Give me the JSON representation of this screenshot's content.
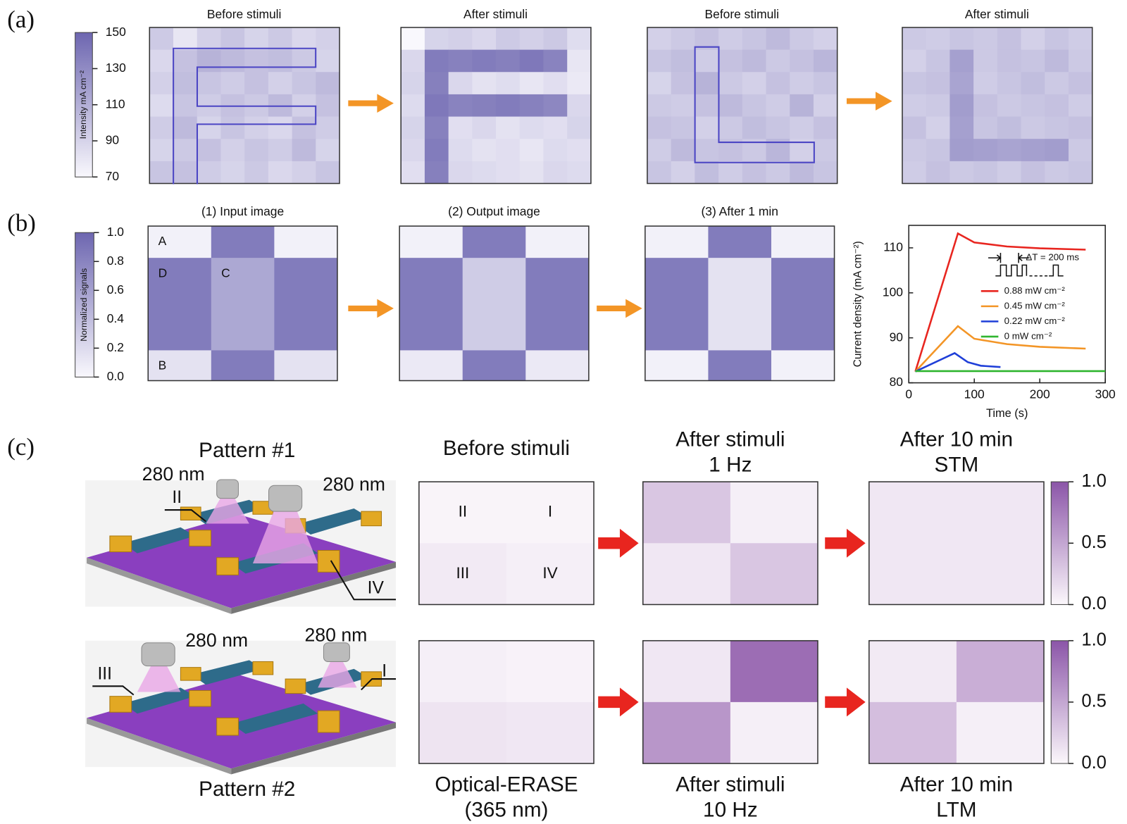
{
  "panel_labels": [
    "(a)",
    "(b)",
    "(c)"
  ],
  "panel_a": {
    "colorbar": {
      "label": "Intensity mA cm⁻²",
      "lim": [
        70,
        150
      ],
      "ticks": [
        70,
        90,
        110,
        130,
        150
      ],
      "colormap": [
        "#f9f8fd",
        "#6d66b0"
      ]
    },
    "maps": [
      {
        "title": "Before stimuli",
        "values": [
          [
            95,
            80,
            92,
            98,
            90,
            96,
            88,
            92
          ],
          [
            88,
            100,
            108,
            104,
            100,
            102,
            96,
            90
          ],
          [
            92,
            102,
            98,
            94,
            100,
            92,
            98,
            104
          ],
          [
            86,
            98,
            94,
            100,
            96,
            104,
            92,
            100
          ],
          [
            94,
            104,
            90,
            98,
            92,
            88,
            100,
            94
          ],
          [
            90,
            96,
            100,
            92,
            98,
            94,
            104,
            90
          ],
          [
            98,
            100,
            94,
            90,
            96,
            88,
            92,
            98
          ]
        ]
      },
      {
        "title": "After stimuli",
        "values": [
          [
            70,
            90,
            92,
            88,
            95,
            92,
            96,
            85
          ],
          [
            88,
            138,
            135,
            138,
            136,
            140,
            134,
            80
          ],
          [
            90,
            136,
            88,
            82,
            85,
            80,
            84,
            78
          ],
          [
            86,
            140,
            134,
            136,
            138,
            135,
            132,
            88
          ],
          [
            90,
            135,
            84,
            88,
            82,
            86,
            84,
            90
          ],
          [
            88,
            138,
            86,
            82,
            84,
            80,
            86,
            84
          ],
          [
            84,
            136,
            88,
            86,
            84,
            82,
            88,
            86
          ]
        ]
      },
      {
        "title": "Before stimuli",
        "values": [
          [
            92,
            96,
            100,
            94,
            98,
            104,
            96,
            92
          ],
          [
            98,
            102,
            94,
            100,
            104,
            96,
            100,
            106
          ],
          [
            90,
            100,
            108,
            96,
            92,
            100,
            94,
            98
          ],
          [
            96,
            94,
            100,
            104,
            98,
            94,
            108,
            92
          ],
          [
            100,
            98,
            92,
            96,
            102,
            98,
            94,
            100
          ],
          [
            94,
            104,
            98,
            100,
            96,
            106,
            92,
            96
          ],
          [
            98,
            92,
            102,
            94,
            100,
            96,
            104,
            98
          ]
        ]
      },
      {
        "title": "After stimuli",
        "values": [
          [
            96,
            94,
            98,
            96,
            100,
            92,
            98,
            94
          ],
          [
            92,
            98,
            118,
            96,
            100,
            98,
            104,
            96
          ],
          [
            98,
            100,
            116,
            94,
            98,
            102,
            96,
            100
          ],
          [
            94,
            96,
            120,
            100,
            96,
            98,
            100,
            94
          ],
          [
            100,
            92,
            118,
            98,
            102,
            96,
            98,
            100
          ],
          [
            96,
            98,
            120,
            118,
            116,
            118,
            120,
            96
          ],
          [
            94,
            100,
            96,
            98,
            94,
            100,
            96,
            98
          ]
        ]
      }
    ]
  },
  "panel_b": {
    "colorbar": {
      "label": "Normalized signals",
      "lim": [
        0,
        1
      ],
      "ticks": [
        {
          "value": 0,
          "label": "0.0"
        },
        0.2,
        0.4,
        0.6,
        0.8,
        {
          "value": 1,
          "label": "1.0"
        }
      ],
      "colormap": [
        "#f9f8fd",
        "#6d66b0"
      ]
    },
    "maps": [
      {
        "title": "(1) Input image",
        "values": [
          [
            0.05,
            0.85,
            0.05
          ],
          [
            0.85,
            0.55,
            0.85
          ],
          [
            0.15,
            0.85,
            0.15
          ]
        ],
        "cell_labels": [
          [
            "A",
            null,
            null
          ],
          [
            "D",
            "C",
            null
          ],
          [
            "B",
            null,
            null
          ]
        ]
      },
      {
        "title": "(2) Output image",
        "values": [
          [
            0.05,
            0.85,
            0.05
          ],
          [
            0.85,
            0.3,
            0.85
          ],
          [
            0.1,
            0.85,
            0.1
          ]
        ]
      },
      {
        "title": "(3) After 1 min",
        "values": [
          [
            0.05,
            0.85,
            0.05
          ],
          [
            0.85,
            0.15,
            0.85
          ],
          [
            0.05,
            0.85,
            0.05
          ]
        ]
      }
    ]
  },
  "chart_data": {
    "type": "line",
    "x_label": "Time (s)",
    "y_label": "Current density (mA cm⁻²)",
    "annotation": "ΔT = 200 ms",
    "xlim": [
      0,
      300
    ],
    "xticks": [
      0,
      100,
      200,
      300
    ],
    "ylim": [
      80,
      115
    ],
    "yticks": [
      80,
      90,
      100,
      110
    ],
    "series": [
      {
        "name": "0.88 mW cm⁻²",
        "color": "#e8251f",
        "x": [
          10,
          75,
          100,
          150,
          200,
          270
        ],
        "values": [
          82.5,
          113.2,
          111.2,
          110.3,
          109.9,
          109.6
        ]
      },
      {
        "name": "0.45 mW cm⁻²",
        "color": "#f39526",
        "x": [
          10,
          75,
          100,
          150,
          200,
          270
        ],
        "values": [
          82.5,
          92.6,
          89.8,
          88.6,
          88,
          87.6
        ]
      },
      {
        "name": "0.22 mW cm⁻²",
        "color": "#1f3fd8",
        "x": [
          10,
          70,
          90,
          110,
          140
        ],
        "values": [
          82.5,
          86.6,
          84.6,
          83.8,
          83.5
        ]
      },
      {
        "name": "0 mW cm⁻²",
        "color": "#2fb52f",
        "x": [
          10,
          300
        ],
        "values": [
          82.6,
          82.6
        ]
      }
    ]
  },
  "panel_c": {
    "colormap": [
      "#fbf7fb",
      "#8b55a8"
    ],
    "rows": [
      {
        "pattern": "Pattern #1",
        "illustration_labels": [
          "280 nm",
          "280 nm",
          "II",
          "IV"
        ],
        "colorbar": {
          "lim": [
            0,
            1
          ],
          "ticks": [
            {
              "value": 0,
              "label": "0.0"
            },
            0.5,
            {
              "value": 1,
              "label": "1.0"
            }
          ]
        },
        "maps": [
          {
            "title": [
              "Before stimuli"
            ],
            "values": [
              [
                0.02,
                0.02
              ],
              [
                0.08,
                0.05
              ]
            ],
            "cell_labels": [
              [
                "II",
                "I"
              ],
              [
                "III",
                "IV"
              ]
            ]
          },
          {
            "title": [
              "After stimuli",
              "1 Hz"
            ],
            "values": [
              [
                0.3,
                0.05
              ],
              [
                0.1,
                0.3
              ]
            ]
          },
          {
            "title": [
              "After 10 min",
              "STM"
            ],
            "values": [
              [
                0.1,
                0.1
              ],
              [
                0.1,
                0.1
              ]
            ]
          }
        ]
      },
      {
        "pattern": "Pattern #2",
        "illustration_labels": [
          "280 nm",
          "280 nm",
          "III",
          "I"
        ],
        "colorbar": {
          "lim": [
            0,
            1
          ],
          "ticks": [
            {
              "value": 0,
              "label": "0.0"
            },
            0.5,
            {
              "value": 1,
              "label": "1.0"
            }
          ]
        },
        "maps": [
          {
            "title": [
              "Optical-ERASE",
              "(365 nm)"
            ],
            "values": [
              [
                0.05,
                0.03
              ],
              [
                0.12,
                0.1
              ]
            ]
          },
          {
            "title": [
              "After stimuli",
              "10 Hz"
            ],
            "values": [
              [
                0.1,
                0.85
              ],
              [
                0.6,
                0.05
              ]
            ]
          },
          {
            "title": [
              "After 10 min",
              "LTM"
            ],
            "values": [
              [
                0.08,
                0.45
              ],
              [
                0.35,
                0.05
              ]
            ]
          }
        ]
      }
    ]
  }
}
